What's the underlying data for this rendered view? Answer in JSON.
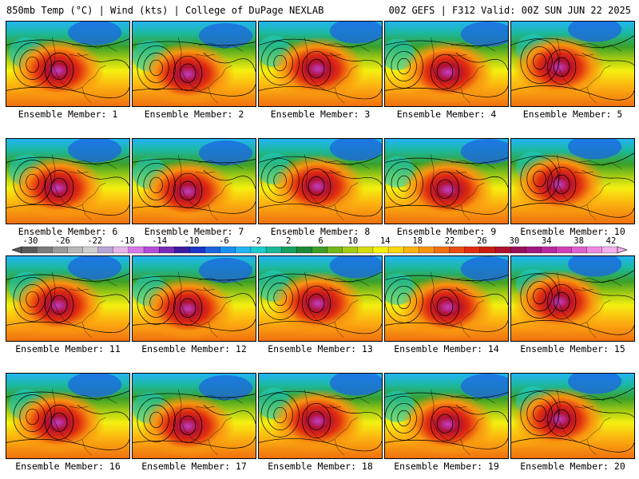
{
  "header": {
    "title_left": "850mb Temp (°C) | Wind (kts) | College of DuPage NEXLAB",
    "title_right": "00Z GEFS | F312 Valid: 00Z SUN JUN 22 2025"
  },
  "panels": [
    {
      "label": "Ensemble Member: 1"
    },
    {
      "label": "Ensemble Member: 2"
    },
    {
      "label": "Ensemble Member: 3"
    },
    {
      "label": "Ensemble Member: 4"
    },
    {
      "label": "Ensemble Member: 5"
    },
    {
      "label": "Ensemble Member: 6"
    },
    {
      "label": "Ensemble Member: 7"
    },
    {
      "label": "Ensemble Member: 8"
    },
    {
      "label": "Ensemble Member: 9"
    },
    {
      "label": "Ensemble Member: 10"
    },
    {
      "label": "Ensemble Member: 11"
    },
    {
      "label": "Ensemble Member: 12"
    },
    {
      "label": "Ensemble Member: 13"
    },
    {
      "label": "Ensemble Member: 14"
    },
    {
      "label": "Ensemble Member: 15"
    },
    {
      "label": "Ensemble Member: 16"
    },
    {
      "label": "Ensemble Member: 17"
    },
    {
      "label": "Ensemble Member: 18"
    },
    {
      "label": "Ensemble Member: 19"
    },
    {
      "label": "Ensemble Member: 20"
    }
  ],
  "colorbar": {
    "ticks": [
      "-30",
      "-26",
      "-22",
      "-18",
      "-14",
      "-10",
      "-6",
      "-2",
      "2",
      "6",
      "10",
      "14",
      "18",
      "22",
      "26",
      "30",
      "34",
      "38",
      "42"
    ],
    "colors": [
      "#5a5a5a",
      "#7a7a7a",
      "#9a9a9a",
      "#b8b8b8",
      "#d0d0d0",
      "#b8a4d8",
      "#e8b4e8",
      "#d878e8",
      "#b44cd8",
      "#7a2ab8",
      "#3c1aa0",
      "#1c34c8",
      "#1c64e0",
      "#1890f0",
      "#22b4f4",
      "#1ccccc",
      "#1cb89c",
      "#16a060",
      "#1c8838",
      "#3ca028",
      "#74b818",
      "#a4cc14",
      "#d4dc10",
      "#f4f010",
      "#fcd810",
      "#fcb410",
      "#f89410",
      "#f07010",
      "#e84c10",
      "#e02c10",
      "#c81c10",
      "#b01030",
      "#981058",
      "#a01880",
      "#b828a0",
      "#d040b8",
      "#e060d0",
      "#ec88e0",
      "#f4b0ec"
    ]
  }
}
